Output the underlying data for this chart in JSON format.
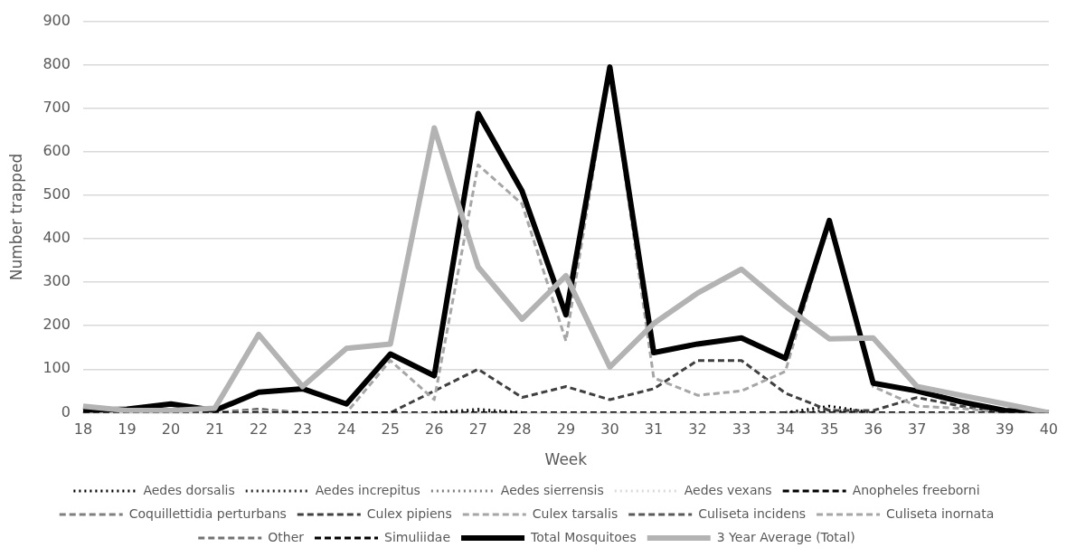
{
  "chart_data": {
    "type": "line",
    "xlabel": "Week",
    "ylabel": "Number trapped",
    "categories": [
      "18",
      "19",
      "20",
      "21",
      "22",
      "23",
      "24",
      "25",
      "26",
      "27",
      "28",
      "29",
      "30",
      "31",
      "32",
      "33",
      "34",
      "35",
      "36",
      "37",
      "38",
      "39",
      "40"
    ],
    "ylim": [
      0,
      900
    ],
    "yticks": [
      0,
      100,
      200,
      300,
      400,
      500,
      600,
      700,
      800,
      900
    ],
    "grid": "y",
    "legend": "bottom",
    "marker": "none",
    "series": [
      {
        "name": "Aedes dorsalis",
        "color": "#000000",
        "line_style": "dotted",
        "values": [
          null,
          null,
          null,
          null,
          null,
          null,
          null,
          null,
          0,
          5,
          0,
          null,
          null,
          null,
          null,
          null,
          0,
          15,
          0,
          null,
          null,
          null,
          null
        ]
      },
      {
        "name": "Aedes increpitus",
        "color": "#262626",
        "line_style": "dotted",
        "values": [
          null,
          null,
          null,
          null,
          null,
          null,
          null,
          null,
          0,
          8,
          0,
          null,
          null,
          null,
          null,
          null,
          0,
          5,
          0,
          null,
          null,
          null,
          null
        ]
      },
      {
        "name": "Aedes sierrensis",
        "color": "#7f7f7f",
        "line_style": "dotted",
        "values": [
          null,
          null,
          null,
          null,
          null,
          null,
          null,
          null,
          null,
          null,
          null,
          null,
          null,
          null,
          null,
          null,
          null,
          null,
          null,
          null,
          null,
          null,
          null
        ]
      },
      {
        "name": "Aedes vexans",
        "color": "#d9d9d9",
        "line_style": "dotted",
        "values": [
          null,
          null,
          null,
          null,
          null,
          null,
          null,
          null,
          null,
          null,
          null,
          null,
          null,
          null,
          null,
          null,
          null,
          null,
          null,
          null,
          null,
          null,
          null
        ]
      },
      {
        "name": "Anopheles freeborni",
        "color": "#000000",
        "line_style": "dashed",
        "values": [
          null,
          null,
          null,
          null,
          null,
          null,
          null,
          null,
          null,
          null,
          null,
          null,
          null,
          null,
          null,
          null,
          null,
          null,
          null,
          null,
          null,
          null,
          null
        ]
      },
      {
        "name": "Coquillettidia perturbans",
        "color": "#7f7f7f",
        "line_style": "dashed",
        "values": [
          null,
          null,
          null,
          null,
          null,
          null,
          null,
          null,
          null,
          null,
          null,
          null,
          null,
          null,
          null,
          null,
          null,
          null,
          null,
          null,
          null,
          null,
          null
        ]
      },
      {
        "name": "Culex pipiens",
        "color": "#404040",
        "line_style": "dashed",
        "values": [
          0,
          0,
          0,
          0,
          8,
          0,
          0,
          0,
          50,
          100,
          35,
          60,
          30,
          55,
          120,
          120,
          45,
          5,
          5,
          35,
          15,
          0,
          0
        ]
      },
      {
        "name": "Culex tarsalis",
        "color": "#a6a6a6",
        "line_style": "dashed",
        "values": [
          0,
          0,
          0,
          0,
          5,
          0,
          0,
          120,
          30,
          570,
          480,
          165,
          790,
          80,
          40,
          50,
          95,
          440,
          60,
          15,
          10,
          0,
          0
        ]
      },
      {
        "name": "Culiseta incidens",
        "color": "#595959",
        "line_style": "dashed",
        "values": [
          null,
          null,
          null,
          null,
          null,
          null,
          null,
          null,
          null,
          null,
          null,
          null,
          null,
          null,
          null,
          null,
          null,
          null,
          null,
          null,
          null,
          null,
          null
        ]
      },
      {
        "name": "Culiseta inornata",
        "color": "#a6a6a6",
        "line_style": "dashed",
        "values": [
          null,
          null,
          null,
          null,
          null,
          null,
          null,
          null,
          null,
          null,
          null,
          null,
          null,
          null,
          null,
          null,
          null,
          null,
          null,
          null,
          null,
          null,
          null
        ]
      },
      {
        "name": "Other",
        "color": "#737373",
        "line_style": "dashed",
        "values": [
          null,
          null,
          null,
          null,
          null,
          null,
          null,
          null,
          null,
          null,
          null,
          null,
          null,
          null,
          null,
          null,
          null,
          null,
          null,
          null,
          null,
          null,
          null
        ]
      },
      {
        "name": "Simuliidae",
        "color": "#000000",
        "line_style": "dashed",
        "values": [
          0,
          0,
          0,
          0,
          0,
          0,
          0,
          0,
          0,
          0,
          0,
          0,
          0,
          0,
          0,
          0,
          0,
          0,
          0,
          0,
          0,
          0,
          0
        ]
      },
      {
        "name": "Total Mosquitoes",
        "color": "#000000",
        "line_style": "solid",
        "values": [
          5,
          8,
          20,
          5,
          47,
          55,
          20,
          135,
          85,
          688,
          510,
          225,
          795,
          138,
          158,
          172,
          125,
          442,
          68,
          50,
          25,
          5,
          0
        ]
      },
      {
        "name": "3 Year Average (Total)",
        "color": "#b3b3b3",
        "line_style": "solid",
        "values": [
          15,
          5,
          5,
          10,
          180,
          60,
          148,
          158,
          655,
          335,
          215,
          315,
          105,
          205,
          275,
          330,
          245,
          170,
          172,
          60,
          40,
          20,
          0
        ]
      }
    ]
  }
}
